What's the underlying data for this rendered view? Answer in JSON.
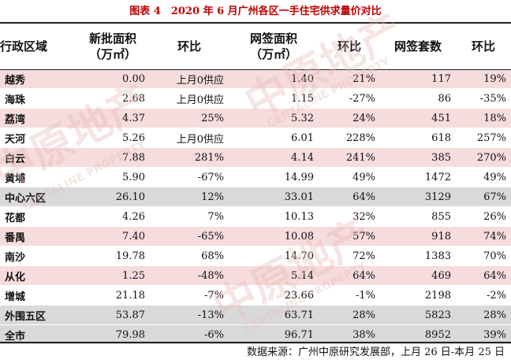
{
  "title": "图表 4　2020 年 6 月广州各区一手住宅供求量价对比",
  "headers": {
    "district": "行政区域",
    "new_area_1": "新批面积",
    "new_area_2": "（万㎡）",
    "ratio1": "环比",
    "signed_area_1": "网签面积",
    "signed_area_2": "（万㎡）",
    "ratio2": "环比",
    "signed_units": "网签套数",
    "ratio3": "环比"
  },
  "rows": [
    {
      "district": "越秀",
      "new_area": "0.00",
      "ratio1": "上月0供应",
      "signed_area": "1.40",
      "ratio2": "21%",
      "units": "117",
      "ratio3": "19%",
      "style": "pink"
    },
    {
      "district": "海珠",
      "new_area": "2.68",
      "ratio1": "上月0供应",
      "signed_area": "1.15",
      "ratio2": "-27%",
      "units": "86",
      "ratio3": "-35%",
      "style": "white"
    },
    {
      "district": "荔湾",
      "new_area": "4.37",
      "ratio1": "25%",
      "signed_area": "5.32",
      "ratio2": "24%",
      "units": "451",
      "ratio3": "18%",
      "style": "pink"
    },
    {
      "district": "天河",
      "new_area": "5.26",
      "ratio1": "上月0供应",
      "signed_area": "6.01",
      "ratio2": "228%",
      "units": "618",
      "ratio3": "257%",
      "style": "white"
    },
    {
      "district": "白云",
      "new_area": "7.88",
      "ratio1": "281%",
      "signed_area": "4.14",
      "ratio2": "241%",
      "units": "385",
      "ratio3": "270%",
      "style": "pink"
    },
    {
      "district": "黄埔",
      "new_area": "5.90",
      "ratio1": "-67%",
      "signed_area": "14.99",
      "ratio2": "49%",
      "units": "1472",
      "ratio3": "49%",
      "style": "white"
    },
    {
      "district": "中心六区",
      "new_area": "26.10",
      "ratio1": "12%",
      "signed_area": "33.01",
      "ratio2": "64%",
      "units": "3129",
      "ratio3": "67%",
      "style": "gray"
    },
    {
      "district": "花都",
      "new_area": "4.26",
      "ratio1": "7%",
      "signed_area": "10.13",
      "ratio2": "32%",
      "units": "855",
      "ratio3": "26%",
      "style": "white"
    },
    {
      "district": "番禺",
      "new_area": "7.40",
      "ratio1": "-65%",
      "signed_area": "10.08",
      "ratio2": "57%",
      "units": "918",
      "ratio3": "74%",
      "style": "pink"
    },
    {
      "district": "南沙",
      "new_area": "19.78",
      "ratio1": "68%",
      "signed_area": "14.70",
      "ratio2": "72%",
      "units": "1383",
      "ratio3": "70%",
      "style": "white"
    },
    {
      "district": "从化",
      "new_area": "1.25",
      "ratio1": "-48%",
      "signed_area": "5.14",
      "ratio2": "64%",
      "units": "469",
      "ratio3": "64%",
      "style": "pink"
    },
    {
      "district": "增城",
      "new_area": "21.18",
      "ratio1": "-7%",
      "signed_area": "23.66",
      "ratio2": "-1%",
      "units": "2198",
      "ratio3": "-2%",
      "style": "white"
    },
    {
      "district": "外围五区",
      "new_area": "53.87",
      "ratio1": "-13%",
      "signed_area": "63.71",
      "ratio2": "28%",
      "units": "5823",
      "ratio3": "28%",
      "style": "gray"
    },
    {
      "district": "全市",
      "new_area": "79.98",
      "ratio1": "-6%",
      "signed_area": "96.71",
      "ratio2": "38%",
      "units": "8952",
      "ratio3": "39%",
      "style": "gray"
    }
  ],
  "source": "数据来源：广州中原研究发展部，上月 26 日-本月 25 日",
  "watermark": {
    "cn": "中原地产",
    "en": "CENTALINE PROPERTY"
  },
  "colors": {
    "title": "#c00000",
    "pink_row": "#f6dcdc",
    "gray_row": "#d9d9d9"
  }
}
